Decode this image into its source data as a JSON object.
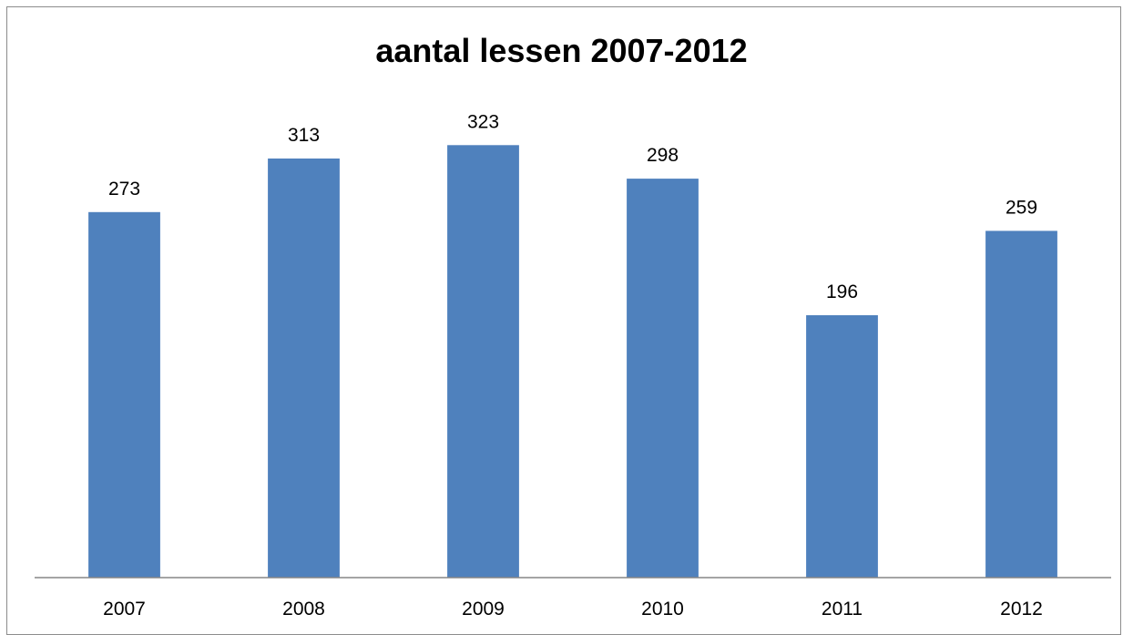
{
  "chart_data": {
    "type": "bar",
    "title": "aantal lessen 2007-2012",
    "xlabel": "",
    "ylabel": "",
    "categories": [
      "2007",
      "2008",
      "2009",
      "2010",
      "2011",
      "2012"
    ],
    "series": [
      {
        "values": [
          273,
          313,
          323,
          298,
          196,
          259
        ],
        "color": "#4F81BD"
      }
    ],
    "data_labels": [
      "273",
      "313",
      "323",
      "298",
      "196",
      "259"
    ],
    "ylim": [
      0,
      345
    ],
    "grid": false,
    "legend": "none",
    "axis_color": "#868686"
  }
}
